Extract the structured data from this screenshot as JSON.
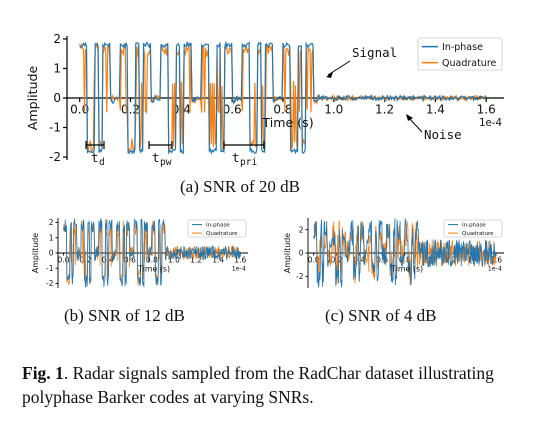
{
  "colors": {
    "inphase": "#1f77b4",
    "quadrature": "#ff7f0e",
    "axis": "#000000"
  },
  "chart_data": [
    {
      "id": "a",
      "type": "line",
      "xlabel": "Time (s)",
      "ylabel": "Amplitude",
      "x_offset_label": "1e-4",
      "xticks": [
        "0.0",
        "0.2",
        "0.4",
        "0.6",
        "0.8",
        "1.0",
        "1.2",
        "1.4",
        "1.6"
      ],
      "xtick_values": [
        0,
        0.2,
        0.4,
        0.6,
        0.8,
        1.0,
        1.2,
        1.4,
        1.6
      ],
      "yticks": [
        "2",
        "1",
        "0",
        "-1",
        "-2"
      ],
      "ytick_values": [
        2,
        1,
        0,
        -1,
        -2
      ],
      "xlim": [
        -0.05,
        1.67
      ],
      "ylim": [
        -2.1,
        2.1
      ],
      "legend": [
        "In-phase",
        "Quadrature"
      ],
      "legend_position": "top-right",
      "snr_db": 20,
      "annotations": {
        "signal": "Signal",
        "noise": "Noise",
        "td": "t",
        "td_sub": "d",
        "tpw": "t",
        "tpw_sub": "pw",
        "tpri": "t",
        "tpri_sub": "pri"
      },
      "pulse_train": {
        "t_start": 0.0,
        "pulse_width": 0.135,
        "pri": 0.16,
        "pulse_count": 6,
        "levels": [
          1.8,
          1.8,
          -1.8,
          -1.8,
          1.8,
          -1.8,
          1.8,
          1.8,
          -0.1
        ],
        "noise_amp": 0.06
      },
      "caption": "(a) SNR of 20 dB"
    },
    {
      "id": "b",
      "type": "line",
      "xlabel": "Time (s)",
      "ylabel": "Amplitude",
      "x_offset_label": "1e-4",
      "xticks": [
        "0.0",
        "0.2",
        "0.4",
        "0.6",
        "0.8",
        "1.0",
        "1.2",
        "1.4",
        "1.6"
      ],
      "xtick_values": [
        0,
        0.2,
        0.4,
        0.6,
        0.8,
        1.0,
        1.2,
        1.4,
        1.6
      ],
      "yticks": [
        "2",
        "1",
        "0",
        "-1",
        "-2"
      ],
      "ytick_values": [
        2,
        1,
        0,
        -1,
        -2
      ],
      "xlim": [
        -0.05,
        1.67
      ],
      "ylim": [
        -2.3,
        2.3
      ],
      "legend": [
        "In-phase",
        "Quadrature"
      ],
      "legend_position": "top-right",
      "snr_db": 12,
      "pulse_train": {
        "t_start": 0.0,
        "pulse_width": 0.135,
        "pri": 0.16,
        "pulse_count": 6,
        "levels": [
          1.8,
          1.8,
          -1.8,
          -1.8,
          1.8,
          -1.8,
          1.8,
          1.8,
          -0.1
        ],
        "noise_amp": 0.35
      },
      "caption": "(b) SNR of 12 dB"
    },
    {
      "id": "c",
      "type": "line",
      "xlabel": "Time (s)",
      "ylabel": "Amplitude",
      "x_offset_label": "1e-4",
      "xticks": [
        "0.0",
        "0.2",
        "0.4",
        "0.6",
        "0.8",
        "1.0",
        "1.2",
        "1.4",
        "1.6"
      ],
      "xtick_values": [
        0,
        0.2,
        0.4,
        0.6,
        0.8,
        1.0,
        1.2,
        1.4,
        1.6
      ],
      "yticks": [
        "2",
        "0",
        "-2"
      ],
      "ytick_values": [
        2,
        0,
        -2
      ],
      "xlim": [
        -0.05,
        1.67
      ],
      "ylim": [
        -3.0,
        3.0
      ],
      "legend": [
        "In-phase",
        "Quadrature"
      ],
      "legend_position": "top-right",
      "snr_db": 4,
      "pulse_train": {
        "t_start": 0.0,
        "pulse_width": 0.135,
        "pri": 0.16,
        "pulse_count": 6,
        "levels": [
          1.8,
          1.8,
          -1.8,
          -1.8,
          1.8,
          -1.8,
          1.8,
          1.8,
          -0.1
        ],
        "noise_amp": 0.9
      },
      "caption": "(c) SNR of 4 dB"
    }
  ],
  "figure_caption": {
    "label": "Fig. 1",
    "text": ". Radar signals sampled from the RadChar dataset illustrating polyphase Barker codes at varying SNRs."
  }
}
